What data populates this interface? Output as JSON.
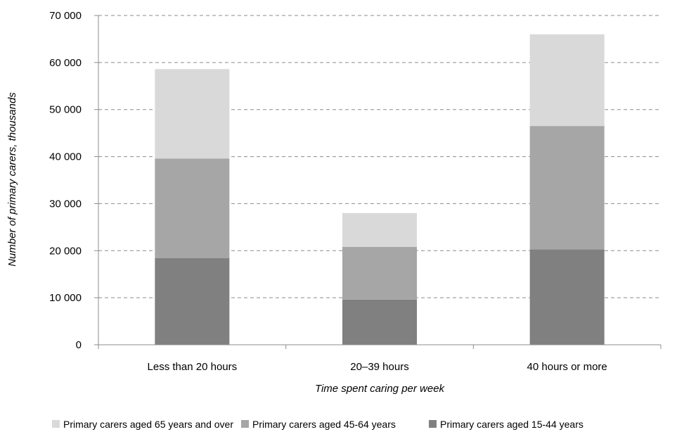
{
  "chart_data": {
    "type": "bar",
    "stacked": true,
    "categories": [
      "Less than 20 hours",
      "20–39 hours",
      "40 hours or more"
    ],
    "series": [
      {
        "name": "Primary carers aged 15-44 years",
        "values": [
          18400,
          9600,
          20300
        ],
        "color": "#808080"
      },
      {
        "name": "Primary carers aged 45-64 years",
        "values": [
          21200,
          11200,
          26200
        ],
        "color": "#a6a6a6"
      },
      {
        "name": "Primary carers aged 65 years and over",
        "values": [
          19000,
          7200,
          19500
        ],
        "color": "#d9d9d9"
      }
    ],
    "ylim": [
      0,
      70000
    ],
    "yticks": [
      0,
      10000,
      20000,
      30000,
      40000,
      50000,
      60000,
      70000
    ],
    "ytick_labels": [
      "0",
      "10 000",
      "20 000",
      "30 000",
      "40 000",
      "50 000",
      "60 000",
      "70 000"
    ],
    "xlabel": "Time spent caring per week",
    "ylabel": "Number of primary carers, thousands",
    "grid": "horizontal dashed",
    "legend": {
      "placement": "bottom",
      "order": [
        "Primary carers aged 65 years and over",
        "Primary carers aged 45-64 years",
        "Primary carers aged 15-44 years"
      ]
    }
  }
}
